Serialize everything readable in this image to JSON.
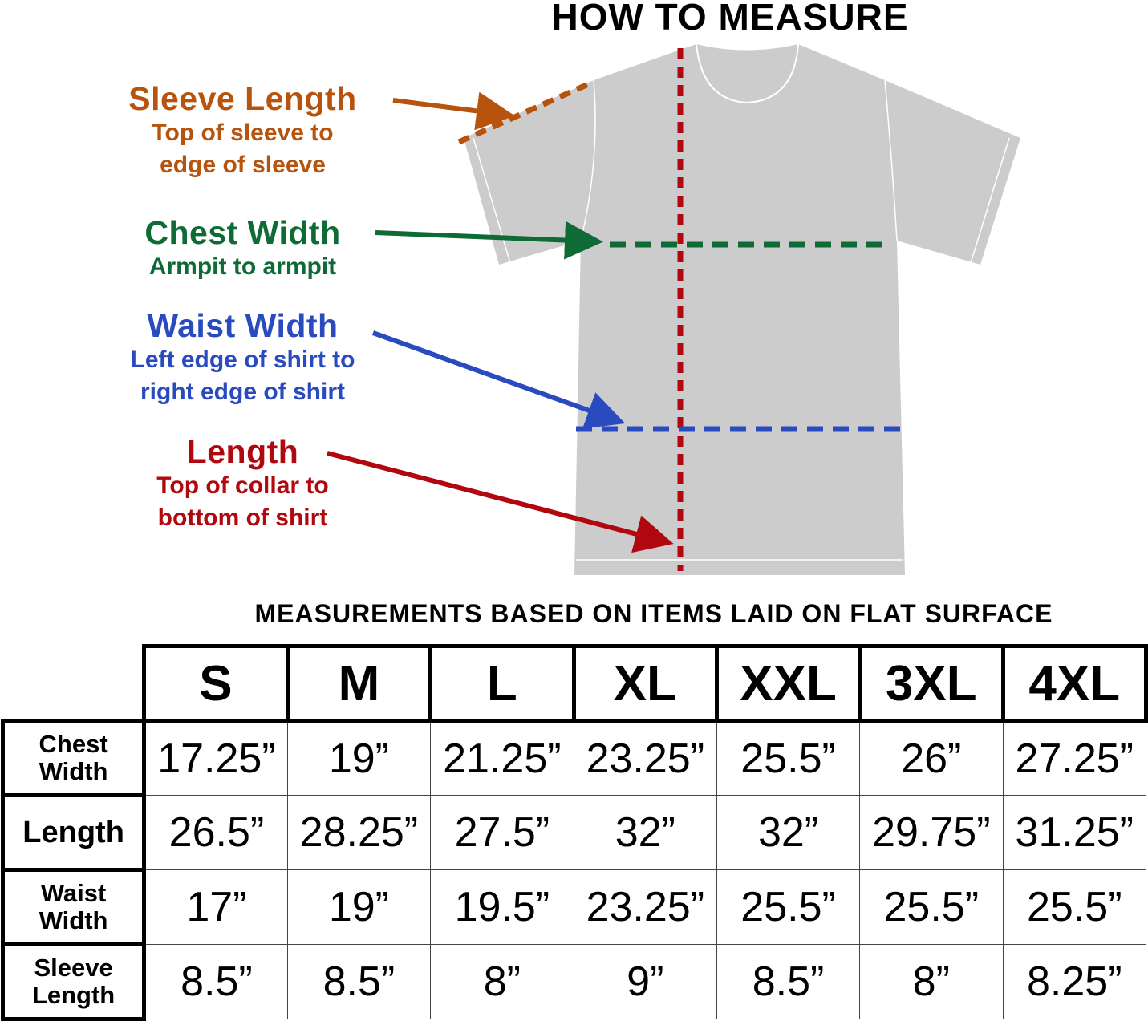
{
  "title": "HOW TO MEASURE",
  "labels": {
    "sleeve": {
      "heading": "Sleeve Length",
      "line1": "Top of sleeve to",
      "line2": "edge of sleeve",
      "color": "#b8530e"
    },
    "chest": {
      "heading": "Chest Width",
      "line1": "Armpit to armpit",
      "color": "#0e6b35"
    },
    "waist": {
      "heading": "Waist Width",
      "line1": "Left edge of shirt to",
      "line2": "right edge of shirt",
      "color": "#2a4bbf"
    },
    "length": {
      "heading": "Length",
      "line1": "Top of collar to",
      "line2": "bottom of shirt",
      "color": "#b0080e"
    }
  },
  "subtitle": "MEASUREMENTS BASED ON ITEMS LAID ON FLAT SURFACE",
  "table": {
    "sizes": [
      "S",
      "M",
      "L",
      "XL",
      "XXL",
      "3XL",
      "4XL"
    ],
    "rows": [
      {
        "label1": "Chest",
        "label2": "Width",
        "values": [
          "17.25”",
          "19”",
          "21.25”",
          "23.25”",
          "25.5”",
          "26”",
          "27.25”"
        ]
      },
      {
        "label1": "Length",
        "label2": "",
        "values": [
          "26.5”",
          "28.25”",
          "27.5”",
          "32”",
          "32”",
          "29.75”",
          "31.25”"
        ]
      },
      {
        "label1": "Waist",
        "label2": "Width",
        "values": [
          "17”",
          "19”",
          "19.5”",
          "23.25”",
          "25.5”",
          "25.5”",
          "25.5”"
        ]
      },
      {
        "label1": "Sleeve",
        "label2": "Length",
        "values": [
          "8.5”",
          "8.5”",
          "8”",
          "9”",
          "8.5”",
          "8”",
          "8.25”"
        ]
      }
    ]
  },
  "shirt_color": "#cccccc"
}
